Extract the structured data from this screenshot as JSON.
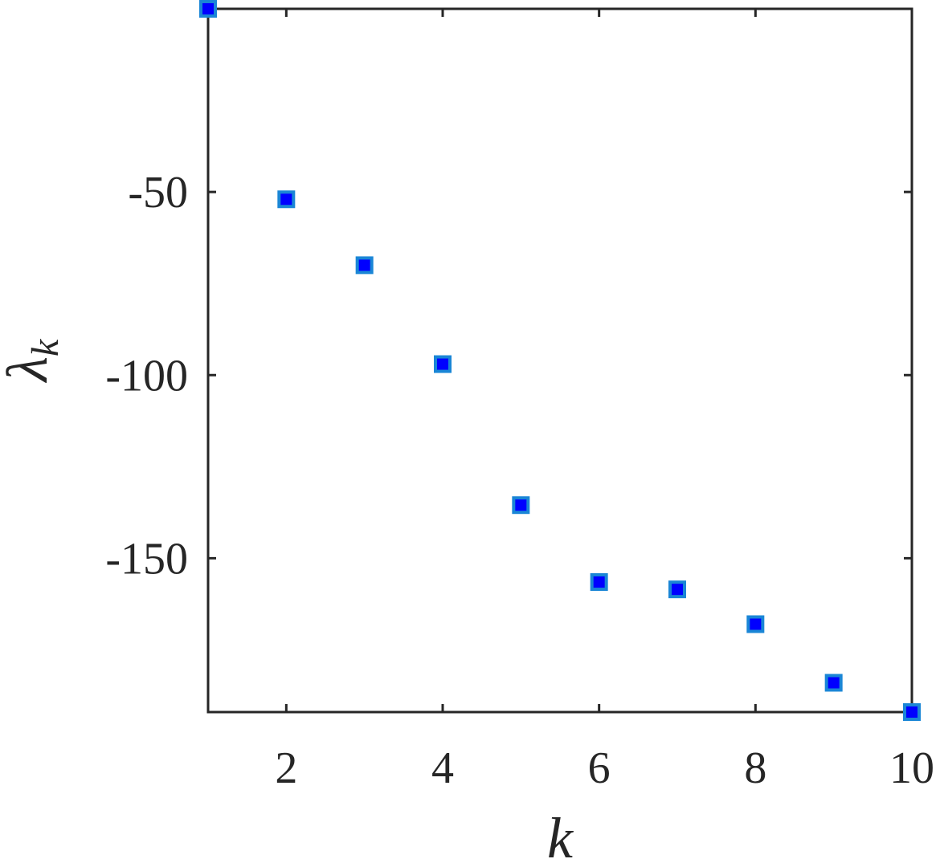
{
  "chart_data": {
    "type": "scatter",
    "title": "",
    "xlabel": "k",
    "ylabel": "λ",
    "ylabel_subscript": "k",
    "xlim": [
      1,
      10
    ],
    "ylim": [
      -192,
      0
    ],
    "xticks": [
      2,
      4,
      6,
      8,
      10
    ],
    "xtick_labels": [
      "2",
      "4",
      "6",
      "8",
      "10"
    ],
    "yticks": [
      -50,
      -100,
      -150
    ],
    "ytick_labels": [
      "-50",
      "-100",
      "-150"
    ],
    "grid": false,
    "legend": "none",
    "marker": "square",
    "marker_fill": "#0000ff",
    "marker_edge": "#1a86d6",
    "axis_color": "#262626",
    "series": [
      {
        "x": [
          1,
          2,
          3,
          4,
          5,
          6,
          7,
          8,
          9,
          10
        ],
        "values": [
          0,
          -52,
          -70,
          -97,
          -135.5,
          -156.5,
          -158.5,
          -168,
          -184,
          -192
        ]
      }
    ]
  }
}
